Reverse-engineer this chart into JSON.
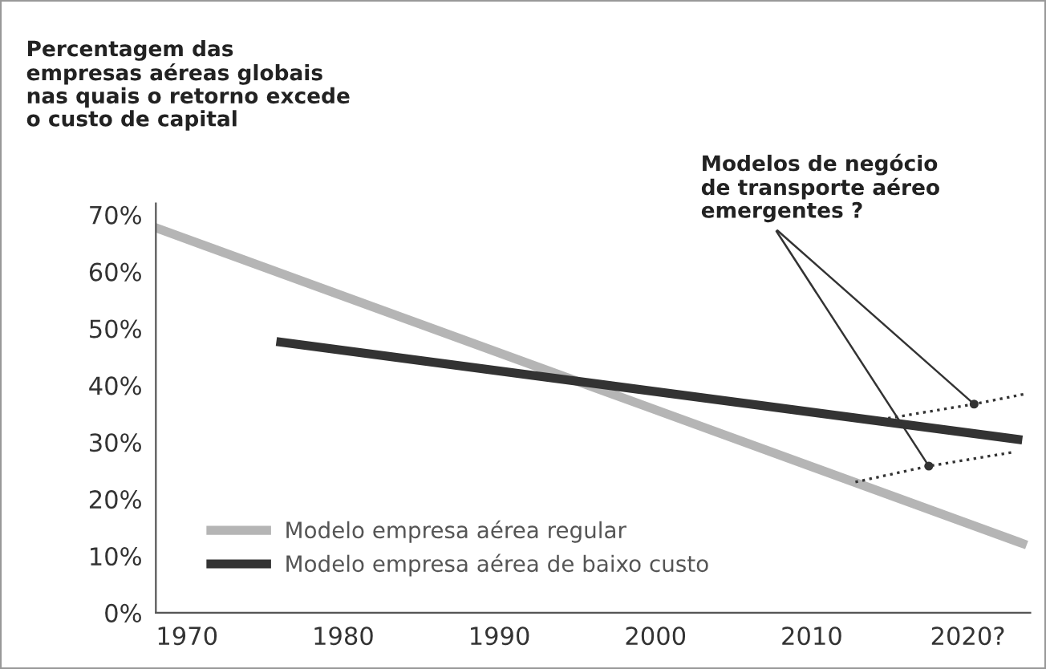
{
  "chart_data": {
    "type": "line",
    "title": "Percentagem das\nempresas aéreas globais\nnas quais o retorno excede\no custo de capital",
    "xlim": [
      1968,
      2024
    ],
    "ylim": [
      0,
      72
    ],
    "xticks": [
      1970,
      1980,
      1990,
      2000,
      2010,
      {
        "value": 2020,
        "label": "2020?"
      }
    ],
    "yticks": [
      {
        "value": 0,
        "label": "0%"
      },
      {
        "value": 10,
        "label": "10%"
      },
      {
        "value": 20,
        "label": "20%"
      },
      {
        "value": 30,
        "label": "30%"
      },
      {
        "value": 40,
        "label": "40%"
      },
      {
        "value": 50,
        "label": "50%"
      },
      {
        "value": 60,
        "label": "60%"
      },
      {
        "value": 70,
        "label": "70%"
      }
    ],
    "series": [
      {
        "name": "Modelo empresa aérea regular",
        "color": "#b5b5b5",
        "x": [
          1968,
          2023.5
        ],
        "values": [
          67.7,
          12.2
        ]
      },
      {
        "name": "Modelo empresa aérea de baixo custo",
        "color": "#333333",
        "x": [
          1976,
          2023.2
        ],
        "values": [
          47.6,
          30.5
        ]
      },
      {
        "color": "#333333",
        "line_style": "dotted",
        "x": [
          2014,
          2020.4,
          2023.7
        ],
        "values": [
          33.8,
          36.7,
          38.5
        ]
      },
      {
        "color": "#333333",
        "line_style": "dotted",
        "x": [
          2012.8,
          2017.5,
          2022.8
        ],
        "values": [
          23.0,
          25.8,
          28.2
        ]
      }
    ],
    "annotations": [
      {
        "text": "Modelos de negócio\nde transporte aéreo\nemergentes ?",
        "x": 2020.4,
        "y": 36.7
      }
    ],
    "legend": "bottom left",
    "grid": false
  }
}
